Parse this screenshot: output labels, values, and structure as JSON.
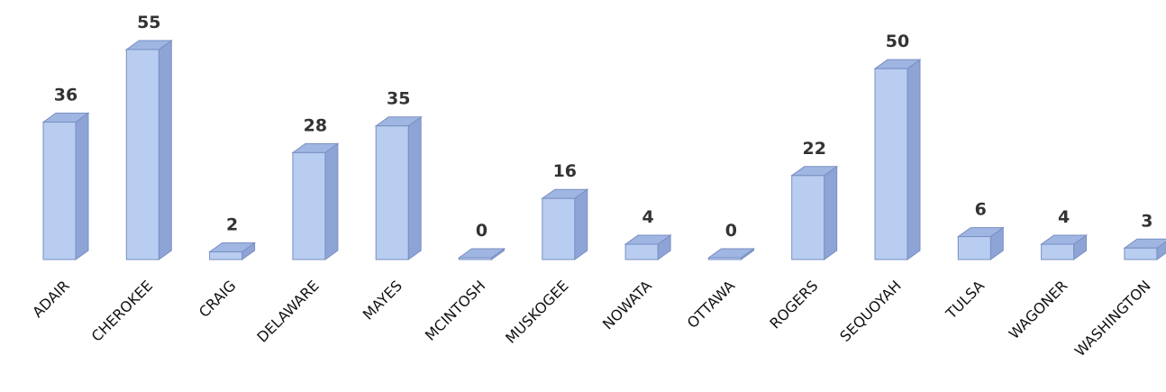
{
  "chart_data": {
    "type": "bar",
    "style": "3d-column",
    "title": "",
    "xlabel": "",
    "ylabel": "",
    "ylim": [
      0,
      55
    ],
    "grid": false,
    "legend": "none",
    "categories": [
      "ADAIR",
      "CHEROKEE",
      "CRAIG",
      "DELAWARE",
      "MAYES",
      "MCINTOSH",
      "MUSKOGEE",
      "NOWATA",
      "OTTAWA",
      "ROGERS",
      "SEQUOYAH",
      "TULSA",
      "WAGONER",
      "WASHINGTON"
    ],
    "values": [
      36,
      55,
      2,
      28,
      35,
      0,
      16,
      4,
      0,
      22,
      50,
      6,
      4,
      3
    ],
    "data_labels": [
      "36",
      "55",
      "2",
      "28",
      "35",
      "0",
      "16",
      "4",
      "0",
      "22",
      "50",
      "6",
      "4",
      "3"
    ],
    "colors": {
      "front": "#b8cdf0",
      "top": "#9fb6e2",
      "side": "#8ea4d6",
      "outline": "#7a8fc2"
    }
  }
}
